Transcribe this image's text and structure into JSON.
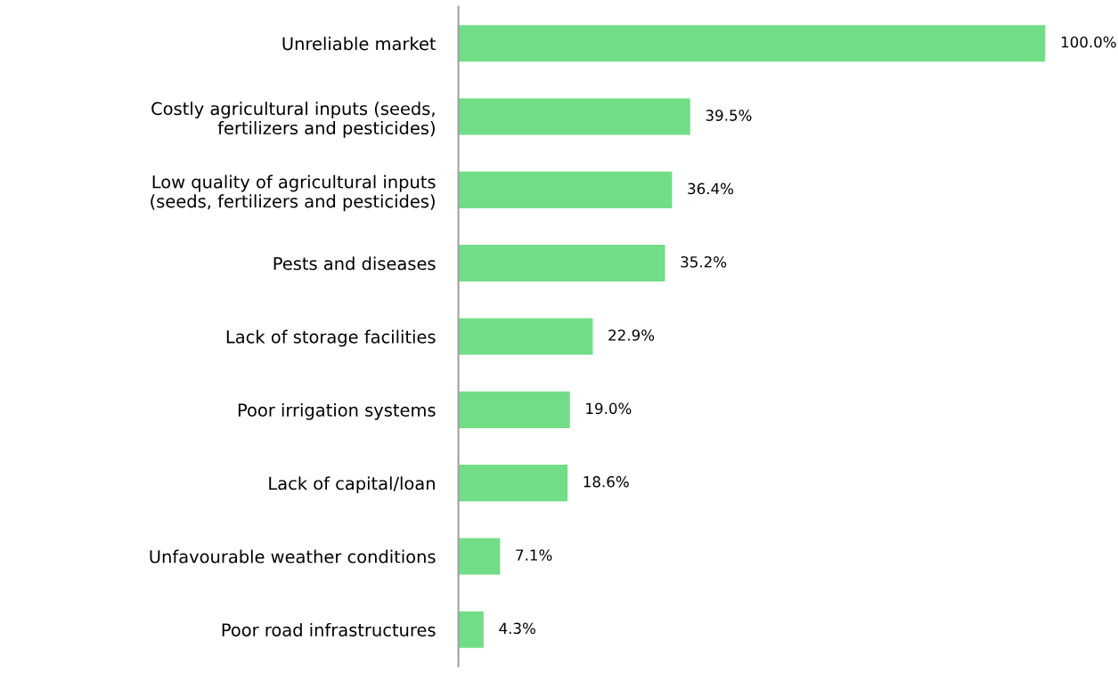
{
  "chart_data": {
    "type": "bar",
    "orientation": "horizontal",
    "categories": [
      "Unreliable market",
      "Costly agricultural inputs (seeds,\nfertilizers and pesticides)",
      "Low quality of agricultural inputs\n(seeds, fertilizers and pesticides)",
      "Pests and diseases",
      "Lack of storage facilities",
      "Poor irrigation systems",
      "Lack of capital/loan",
      "Unfavourable weather conditions",
      "Poor road infrastructures"
    ],
    "values": [
      100.0,
      39.5,
      36.4,
      35.2,
      22.9,
      19.0,
      18.6,
      7.1,
      4.3
    ],
    "value_labels": [
      "100.0%",
      "39.5%",
      "36.4%",
      "35.2%",
      "22.9%",
      "19.0%",
      "18.6%",
      "7.1%",
      "4.3%"
    ],
    "color": "#71dd86",
    "grid": false,
    "legend": false
  }
}
